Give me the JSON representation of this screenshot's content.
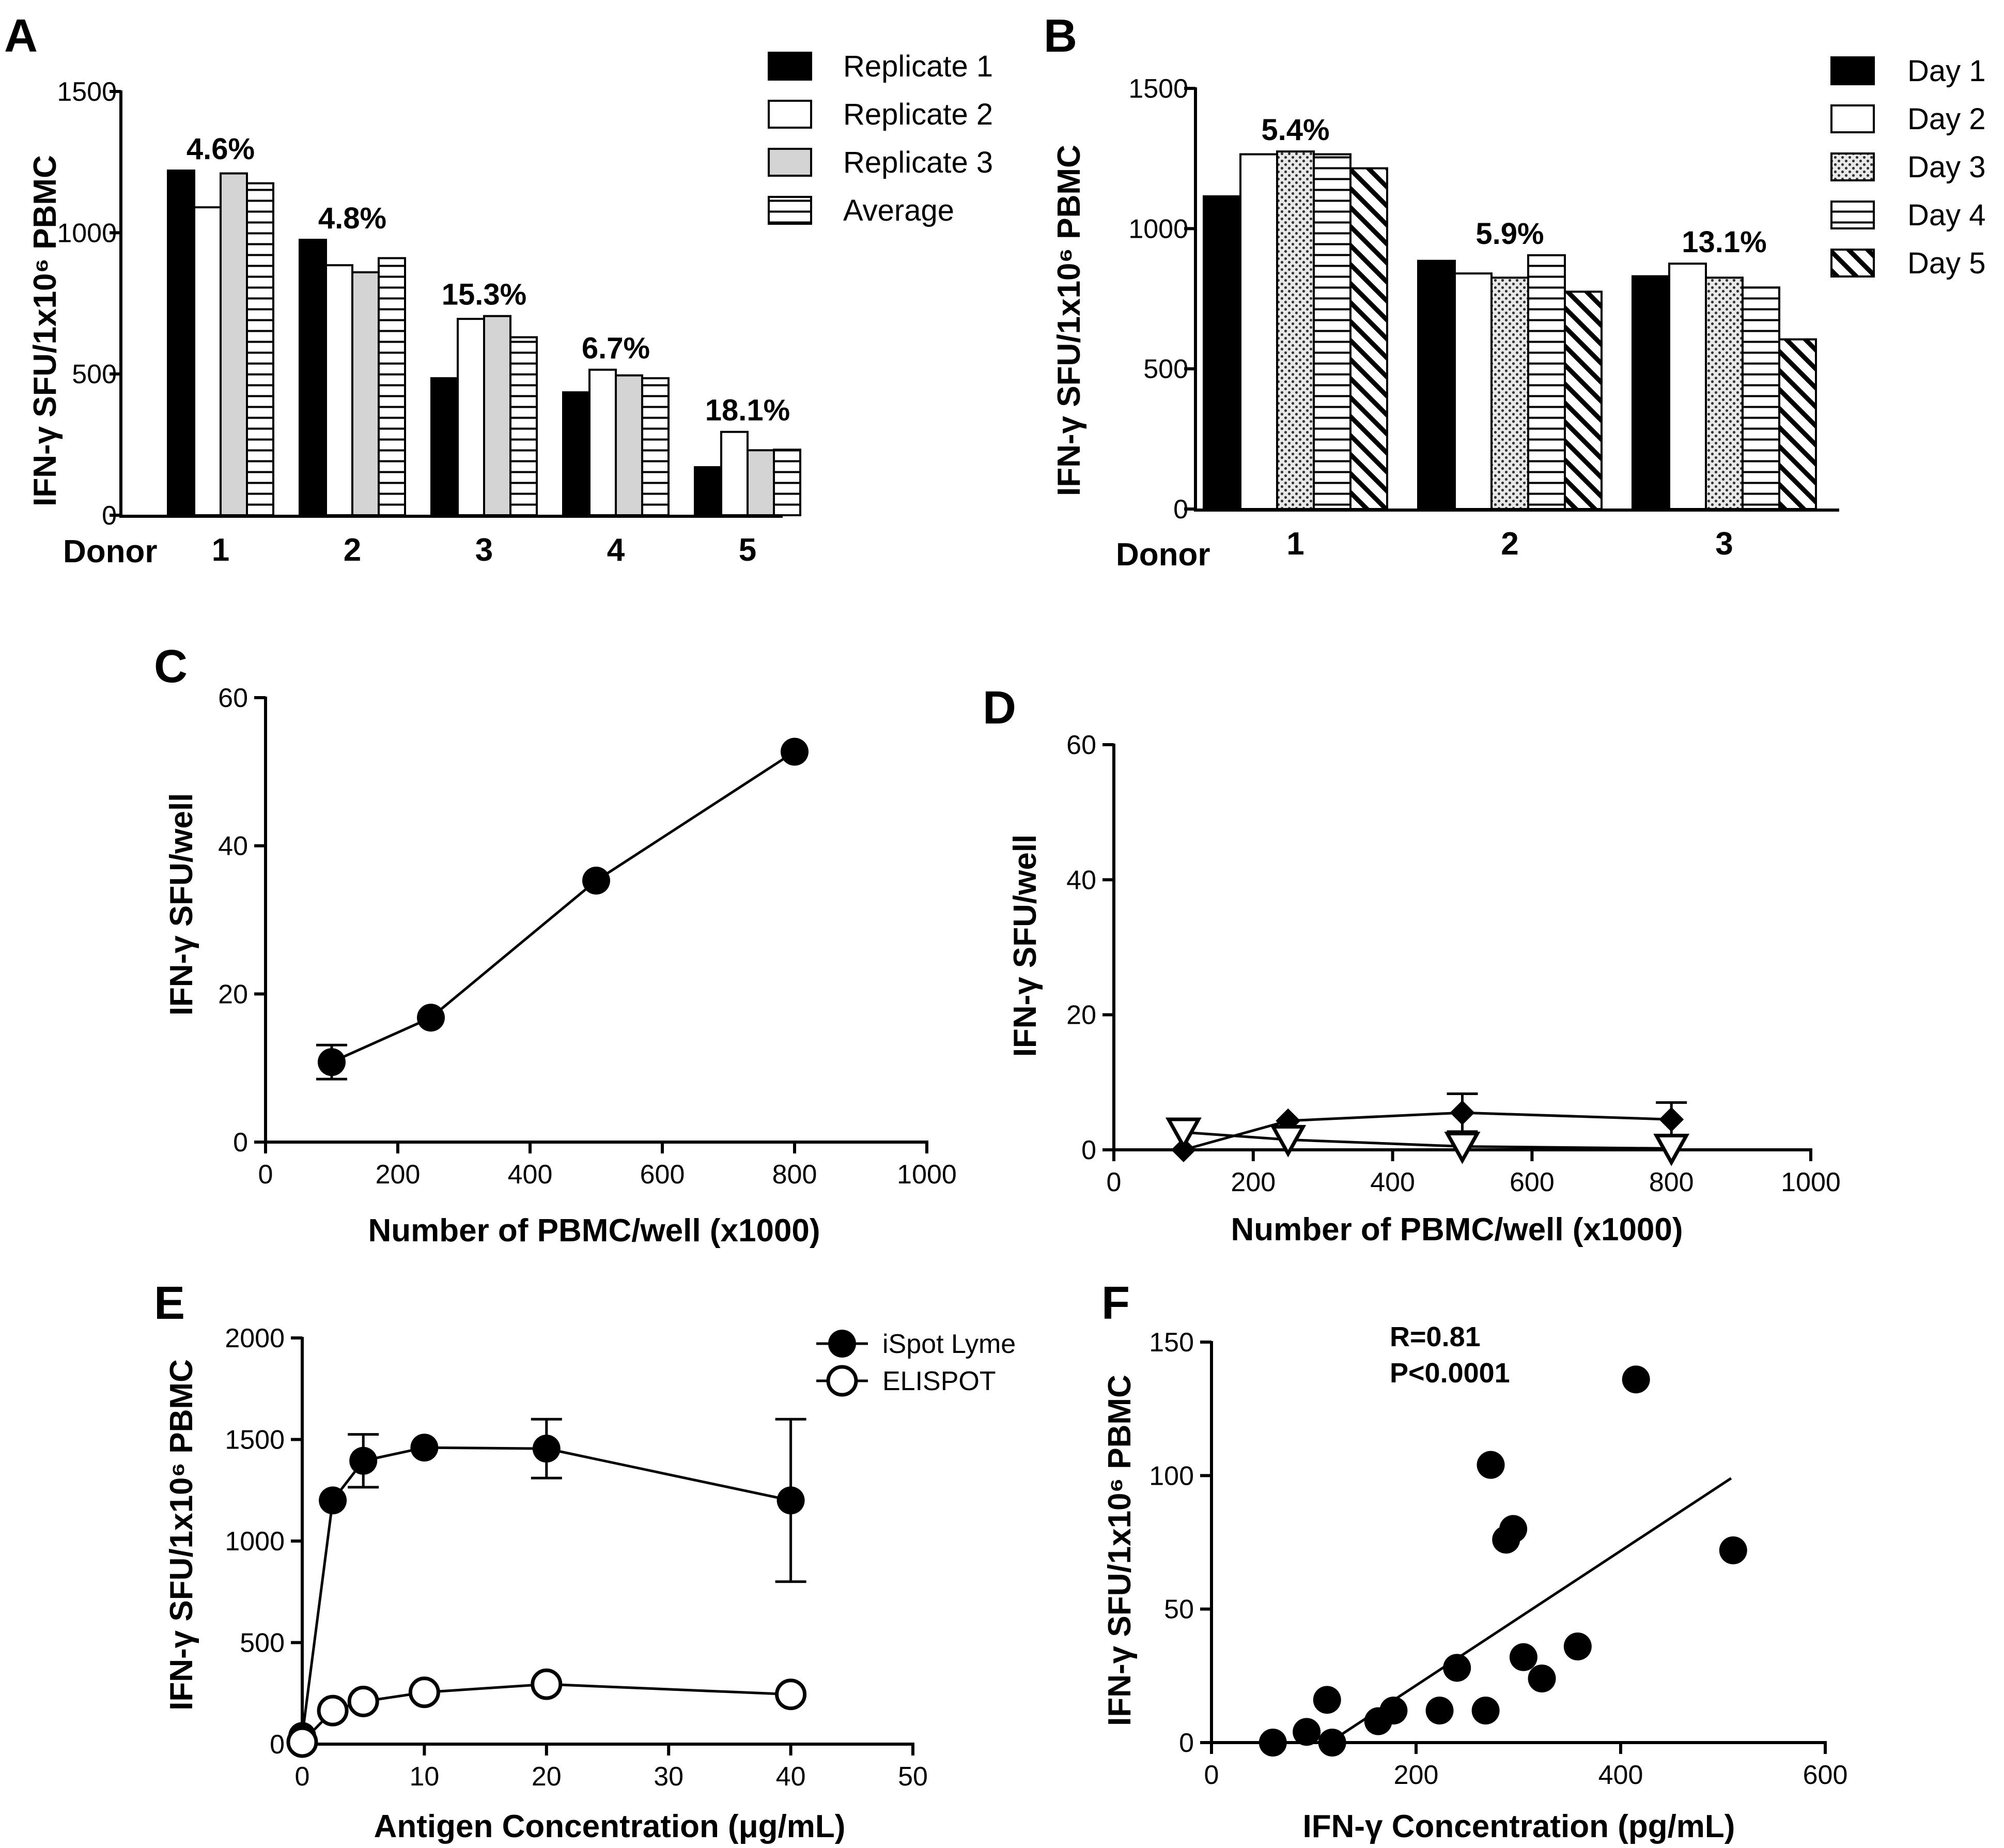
{
  "chart_data": [
    {
      "panel": "A",
      "type": "bar",
      "ylabel": "IFN-γ SFU/1x10⁶ PBMC",
      "xlabel": "Donor",
      "categories": [
        "1",
        "2",
        "3",
        "4",
        "5"
      ],
      "ylim": [
        0,
        1500
      ],
      "yticks": [
        0,
        500,
        1000,
        1500
      ],
      "series": [
        {
          "name": "Replicate 1",
          "pattern": "solid",
          "values": [
            1220,
            975,
            485,
            435,
            170
          ]
        },
        {
          "name": "Replicate 2",
          "pattern": "white",
          "values": [
            1090,
            885,
            695,
            515,
            295
          ]
        },
        {
          "name": "Replicate 3",
          "pattern": "gray",
          "values": [
            1210,
            860,
            705,
            495,
            230
          ]
        },
        {
          "name": "Average",
          "pattern": "hlines",
          "values": [
            1175,
            910,
            630,
            485,
            232
          ]
        }
      ],
      "annotations": [
        "4.6%",
        "4.8%",
        "15.3%",
        "6.7%",
        "18.1%"
      ]
    },
    {
      "panel": "B",
      "type": "bar",
      "ylabel": "IFN-γ SFU/1x10⁶ PBMC",
      "xlabel": "Donor",
      "categories": [
        "1",
        "2",
        "3"
      ],
      "ylim": [
        0,
        1500
      ],
      "yticks": [
        0,
        500,
        1000,
        1500
      ],
      "series": [
        {
          "name": "Day 1",
          "pattern": "solid",
          "values": [
            1115,
            885,
            830
          ]
        },
        {
          "name": "Day 2",
          "pattern": "white",
          "values": [
            1265,
            840,
            875
          ]
        },
        {
          "name": "Day 3",
          "pattern": "dots",
          "values": [
            1275,
            825,
            825
          ]
        },
        {
          "name": "Day 4",
          "pattern": "hlines",
          "values": [
            1265,
            905,
            790
          ]
        },
        {
          "name": "Day 5",
          "pattern": "diag",
          "values": [
            1215,
            775,
            605
          ]
        }
      ],
      "annotations": [
        "5.4%",
        "5.9%",
        "13.1%"
      ]
    },
    {
      "panel": "C",
      "type": "line",
      "ylabel": "IFN-γ SFU/well",
      "xlabel": "Number of PBMC/well (x1000)",
      "xlim": [
        0,
        1000
      ],
      "ylim": [
        0,
        60
      ],
      "xticks": [
        0,
        200,
        400,
        600,
        800,
        1000
      ],
      "yticks": [
        0,
        20,
        40,
        60
      ],
      "series": [
        {
          "name": "",
          "marker": "filled-circle",
          "x": [
            100,
            250,
            500,
            800
          ],
          "y": [
            10.8,
            16.8,
            35.3,
            52.7
          ],
          "err": [
            2.3,
            0,
            0,
            0
          ]
        }
      ]
    },
    {
      "panel": "D",
      "type": "line",
      "ylabel": "IFN-γ SFU/well",
      "xlabel": "Number of PBMC/well (x1000)",
      "xlim": [
        0,
        1000
      ],
      "ylim": [
        0,
        60
      ],
      "xticks": [
        0,
        200,
        400,
        600,
        800,
        1000
      ],
      "yticks": [
        0,
        20,
        40,
        60
      ],
      "series": [
        {
          "name": "",
          "marker": "filled-diamond",
          "x": [
            100,
            250,
            500,
            800
          ],
          "y": [
            0,
            4.3,
            5.5,
            4.5
          ],
          "err": [
            0,
            0,
            2.8,
            2.5
          ]
        },
        {
          "name": "",
          "marker": "open-triangle-down",
          "x": [
            100,
            250,
            500,
            800
          ],
          "y": [
            2.6,
            1.5,
            0.5,
            0.2
          ],
          "err": [
            0,
            0,
            0,
            0
          ]
        }
      ]
    },
    {
      "panel": "E",
      "type": "line",
      "ylabel": "IFN-γ SFU/1x10⁶ PBMC",
      "xlabel": "Antigen Concentration (μg/mL)",
      "xlim": [
        0,
        50
      ],
      "ylim": [
        0,
        2000
      ],
      "xticks": [
        0,
        10,
        20,
        30,
        40,
        50
      ],
      "yticks": [
        0,
        500,
        1000,
        1500,
        2000
      ],
      "series": [
        {
          "name": "iSpot Lyme",
          "marker": "filled-circle",
          "x": [
            0,
            2.5,
            5,
            10,
            20,
            40
          ],
          "y": [
            40,
            1200,
            1395,
            1460,
            1455,
            1200
          ],
          "err": [
            0,
            0,
            130,
            0,
            145,
            400
          ]
        },
        {
          "name": "ELISPOT",
          "marker": "open-circle",
          "x": [
            0,
            2.5,
            5,
            10,
            20,
            40
          ],
          "y": [
            10,
            165,
            210,
            255,
            295,
            245
          ],
          "err": [
            0,
            0,
            0,
            0,
            0,
            0
          ]
        }
      ]
    },
    {
      "panel": "F",
      "type": "scatter",
      "ylabel": "IFN-γ SFU/1x10⁶ PBMC",
      "xlabel": "IFN-γ Concentration (pg/mL)",
      "xlim": [
        0,
        600
      ],
      "ylim": [
        0,
        150
      ],
      "xticks": [
        0,
        200,
        400,
        600
      ],
      "yticks": [
        0,
        50,
        100,
        150
      ],
      "points": {
        "x": [
          60,
          93,
          113,
          118,
          163,
          178,
          223,
          240,
          268,
          273,
          288,
          295,
          305,
          323,
          358,
          415,
          510
        ],
        "y": [
          0,
          4,
          16,
          0,
          8,
          12,
          12,
          28,
          12,
          104,
          76,
          80,
          32,
          24,
          36,
          136,
          72
        ]
      },
      "fit": {
        "x": [
          115,
          508
        ],
        "y": [
          0,
          99
        ]
      },
      "stats": [
        "R=0.81",
        "P<0.0001"
      ]
    }
  ]
}
